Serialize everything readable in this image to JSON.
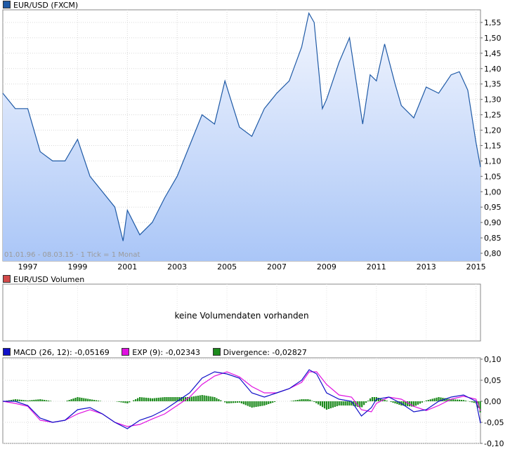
{
  "price": {
    "legend": "EUR/USD (FXCM)",
    "color": "#1f5aa6",
    "fill_top": "#f3f6fe",
    "fill_bottom": "#aac6f7",
    "footnote": "01.01.96 - 08.03.15 · 1 Tick = 1 Monat"
  },
  "volume": {
    "legend": "EUR/USD Volumen",
    "swatch_color": "#d24a4a",
    "message": "keine Volumendaten vorhanden"
  },
  "macd": {
    "legend_macd": "MACD (26, 12): -0,05169",
    "legend_exp": "EXP (9): -0,02343",
    "legend_div": "Divergence: -0,02827",
    "macd_color": "#1010c8",
    "exp_color": "#e010e0",
    "div_color": "#1c8a1c"
  },
  "chart_data": [
    {
      "type": "area",
      "series": [
        {
          "name": "EUR/USD (FXCM)",
          "x": [
            1996.0,
            1996.5,
            1997.0,
            1997.5,
            1998.0,
            1998.5,
            1999.0,
            1999.5,
            2000.0,
            2000.5,
            2000.83,
            2001.0,
            2001.5,
            2002.0,
            2002.5,
            2003.0,
            2003.5,
            2004.0,
            2004.5,
            2004.92,
            2005.5,
            2006.0,
            2006.5,
            2007.0,
            2007.5,
            2008.0,
            2008.29,
            2008.5,
            2008.83,
            2009.0,
            2009.5,
            2009.92,
            2010.45,
            2010.75,
            2011.0,
            2011.33,
            2011.75,
            2012.0,
            2012.5,
            2013.0,
            2013.5,
            2014.0,
            2014.33,
            2014.67,
            2015.0,
            2015.18
          ],
          "values": [
            1.32,
            1.27,
            1.27,
            1.13,
            1.1,
            1.1,
            1.17,
            1.05,
            1.0,
            0.95,
            0.84,
            0.94,
            0.86,
            0.9,
            0.98,
            1.05,
            1.15,
            1.25,
            1.22,
            1.36,
            1.21,
            1.18,
            1.27,
            1.32,
            1.36,
            1.47,
            1.58,
            1.55,
            1.27,
            1.3,
            1.42,
            1.5,
            1.22,
            1.38,
            1.36,
            1.48,
            1.35,
            1.28,
            1.24,
            1.34,
            1.32,
            1.38,
            1.39,
            1.33,
            1.16,
            1.08
          ]
        }
      ],
      "ylim": [
        0.8,
        1.55
      ],
      "yticks": [
        "0,80",
        "0,85",
        "0,90",
        "0,95",
        "1,00",
        "1,05",
        "1,10",
        "1,15",
        "1,20",
        "1,25",
        "1,30",
        "1,35",
        "1,40",
        "1,45",
        "1,50",
        "1,55"
      ],
      "xticks": [
        "1997",
        "1999",
        "2001",
        "2003",
        "2005",
        "2007",
        "2009",
        "2011",
        "2013",
        "2015"
      ]
    },
    {
      "type": "line",
      "series": [
        {
          "name": "MACD (26, 12)",
          "x": [
            1996.0,
            1996.5,
            1997.0,
            1997.5,
            1998.0,
            1998.5,
            1999.0,
            1999.5,
            2000.0,
            2000.5,
            2001.0,
            2001.5,
            2002.0,
            2002.5,
            2003.0,
            2003.5,
            2004.0,
            2004.5,
            2005.0,
            2005.5,
            2006.0,
            2006.5,
            2007.0,
            2007.5,
            2008.0,
            2008.3,
            2008.6,
            2009.0,
            2009.5,
            2010.0,
            2010.4,
            2010.8,
            2011.0,
            2011.5,
            2012.0,
            2012.5,
            2013.0,
            2013.5,
            2014.0,
            2014.5,
            2015.0,
            2015.18
          ],
          "values": [
            0.0,
            0.0,
            -0.01,
            -0.04,
            -0.05,
            -0.045,
            -0.02,
            -0.015,
            -0.03,
            -0.05,
            -0.065,
            -0.045,
            -0.035,
            -0.02,
            0.0,
            0.02,
            0.055,
            0.07,
            0.065,
            0.055,
            0.02,
            0.01,
            0.02,
            0.03,
            0.05,
            0.075,
            0.065,
            0.02,
            0.005,
            0.0,
            -0.035,
            -0.015,
            0.005,
            0.01,
            -0.005,
            -0.025,
            -0.02,
            0.0,
            0.01,
            0.015,
            0.0,
            -0.052
          ]
        },
        {
          "name": "EXP (9)",
          "x": [
            1996.0,
            1996.5,
            1997.0,
            1997.5,
            1998.0,
            1998.5,
            1999.0,
            1999.5,
            2000.0,
            2000.5,
            2001.0,
            2001.5,
            2002.0,
            2002.5,
            2003.0,
            2003.5,
            2004.0,
            2004.5,
            2005.0,
            2005.5,
            2006.0,
            2006.5,
            2007.0,
            2007.5,
            2008.0,
            2008.3,
            2008.6,
            2009.0,
            2009.5,
            2010.0,
            2010.4,
            2010.8,
            2011.0,
            2011.5,
            2012.0,
            2012.5,
            2013.0,
            2013.5,
            2014.0,
            2014.5,
            2015.0,
            2015.18
          ],
          "values": [
            0.0,
            -0.005,
            -0.012,
            -0.045,
            -0.05,
            -0.045,
            -0.03,
            -0.02,
            -0.03,
            -0.05,
            -0.06,
            -0.055,
            -0.042,
            -0.03,
            -0.01,
            0.01,
            0.04,
            0.06,
            0.07,
            0.058,
            0.035,
            0.02,
            0.02,
            0.03,
            0.045,
            0.07,
            0.07,
            0.04,
            0.015,
            0.01,
            -0.02,
            -0.025,
            -0.005,
            0.01,
            0.005,
            -0.012,
            -0.022,
            -0.01,
            0.005,
            0.012,
            0.005,
            -0.023
          ]
        },
        {
          "name": "Divergence",
          "x": [
            1996.0,
            1996.5,
            1997.0,
            1997.5,
            1998.0,
            1998.5,
            1999.0,
            1999.5,
            2000.0,
            2000.5,
            2001.0,
            2001.5,
            2002.0,
            2002.5,
            2003.0,
            2003.5,
            2004.0,
            2004.5,
            2005.0,
            2005.5,
            2006.0,
            2006.5,
            2007.0,
            2007.5,
            2008.0,
            2008.3,
            2008.6,
            2009.0,
            2009.5,
            2010.0,
            2010.4,
            2010.8,
            2011.0,
            2011.5,
            2012.0,
            2012.5,
            2013.0,
            2013.5,
            2014.0,
            2014.5,
            2015.0,
            2015.18
          ],
          "values": [
            0.0,
            0.005,
            0.002,
            0.005,
            0.0,
            0.0,
            0.01,
            0.005,
            0.0,
            0.0,
            -0.005,
            0.01,
            0.007,
            0.01,
            0.01,
            0.01,
            0.015,
            0.01,
            -0.005,
            -0.003,
            -0.015,
            -0.01,
            0.0,
            0.0,
            0.005,
            0.005,
            -0.005,
            -0.02,
            -0.01,
            -0.01,
            -0.015,
            0.01,
            0.01,
            0.0,
            -0.01,
            -0.013,
            0.002,
            0.01,
            0.005,
            0.003,
            -0.005,
            -0.028
          ]
        }
      ],
      "ylim": [
        -0.1,
        0.1
      ],
      "yticks": [
        "-0,10",
        "-0,05",
        "0,00",
        "0,05",
        "0,10"
      ]
    }
  ]
}
